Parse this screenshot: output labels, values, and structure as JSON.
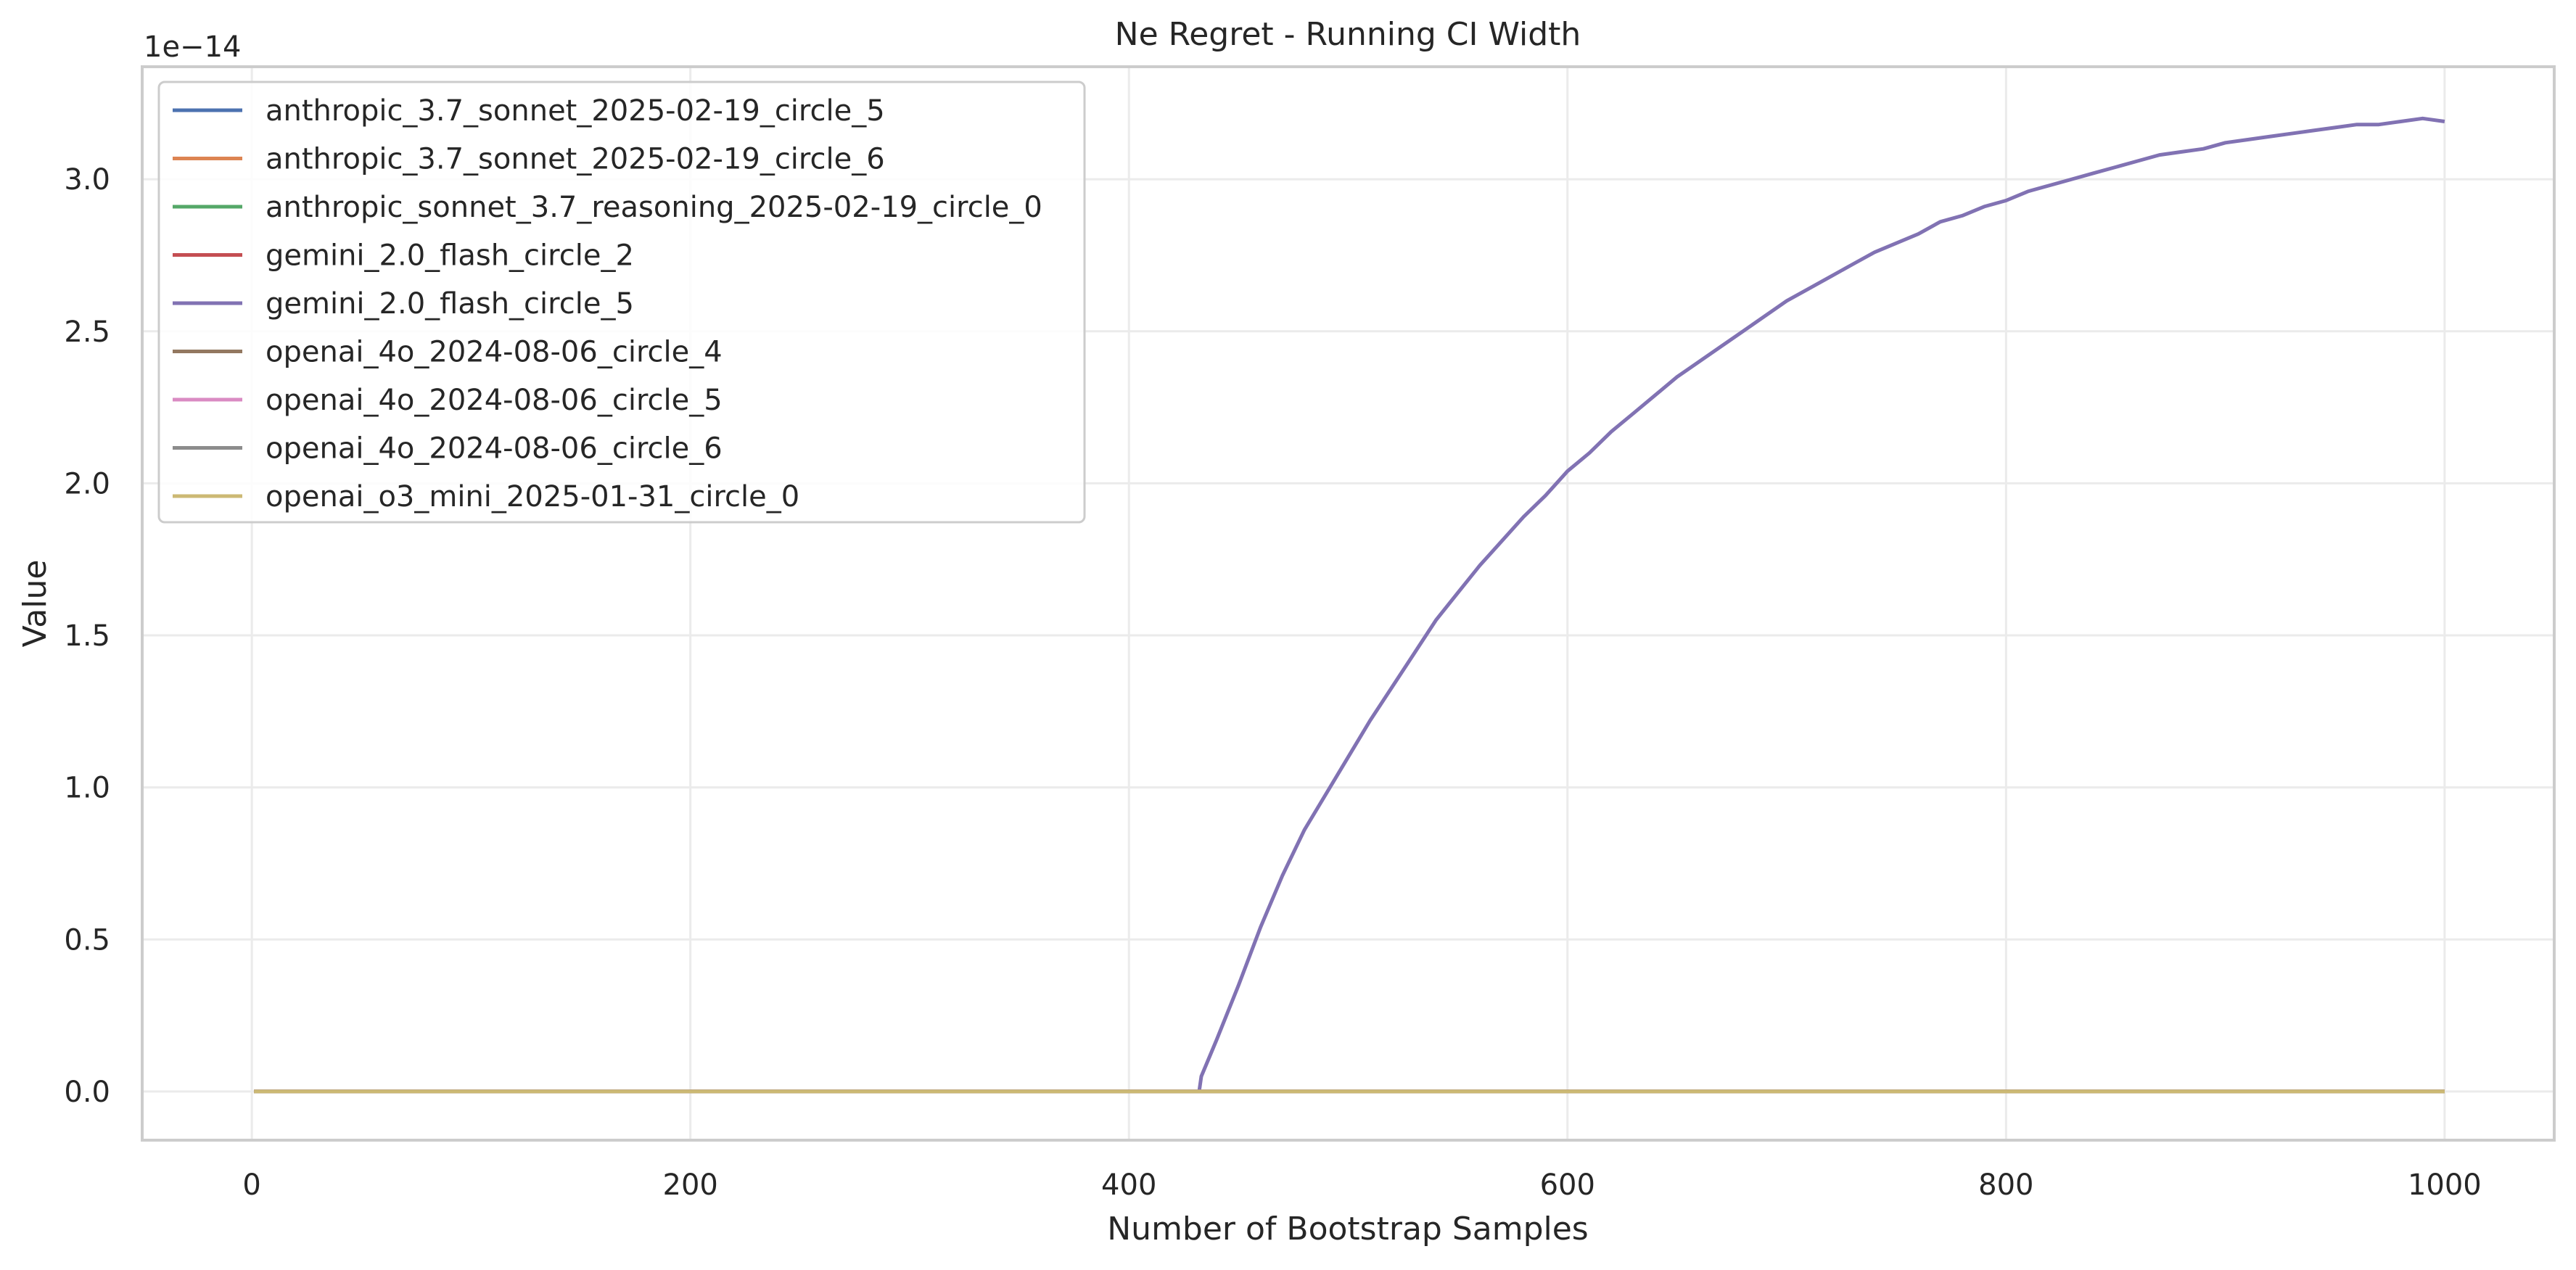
{
  "chart_data": {
    "type": "line",
    "title": "Ne Regret - Running CI Width",
    "xlabel": "Number of Bootstrap Samples",
    "ylabel": "Value",
    "y_offset_label": "1e−14",
    "xlim": [
      -50,
      1050
    ],
    "ylim": [
      -0.16,
      3.37
    ],
    "y_scale_multiplier": 1e-14,
    "xticks": [
      0,
      200,
      400,
      600,
      800,
      1000
    ],
    "xtick_labels": [
      "0",
      "200",
      "400",
      "600",
      "800",
      "1000"
    ],
    "yticks": [
      0.0,
      0.5,
      1.0,
      1.5,
      2.0,
      2.5,
      3.0
    ],
    "ytick_labels": [
      "0.0",
      "0.5",
      "1.0",
      "1.5",
      "2.0",
      "2.5",
      "3.0"
    ],
    "grid": true,
    "legend_position": "upper-left",
    "series": [
      {
        "name": "anthropic_3.7_sonnet_2025-02-19_circle_5",
        "color": "#4c72b0",
        "points": [
          [
            1,
            0
          ],
          [
            1000,
            0
          ]
        ]
      },
      {
        "name": "anthropic_3.7_sonnet_2025-02-19_circle_6",
        "color": "#dd8452",
        "points": [
          [
            1,
            0
          ],
          [
            1000,
            0
          ]
        ]
      },
      {
        "name": "anthropic_sonnet_3.7_reasoning_2025-02-19_circle_0",
        "color": "#55a868",
        "points": [
          [
            1,
            0
          ],
          [
            1000,
            0
          ]
        ]
      },
      {
        "name": "gemini_2.0_flash_circle_2",
        "color": "#c44e52",
        "points": [
          [
            1,
            0
          ],
          [
            1000,
            0
          ]
        ]
      },
      {
        "name": "gemini_2.0_flash_circle_5",
        "color": "#8172b3",
        "points": [
          [
            1,
            0
          ],
          [
            432,
            0
          ],
          [
            433,
            0.05
          ],
          [
            440,
            0.17
          ],
          [
            450,
            0.35
          ],
          [
            460,
            0.54
          ],
          [
            470,
            0.71
          ],
          [
            480,
            0.86
          ],
          [
            490,
            0.98
          ],
          [
            500,
            1.1
          ],
          [
            510,
            1.22
          ],
          [
            520,
            1.33
          ],
          [
            530,
            1.44
          ],
          [
            540,
            1.55
          ],
          [
            550,
            1.64
          ],
          [
            560,
            1.73
          ],
          [
            570,
            1.81
          ],
          [
            580,
            1.89
          ],
          [
            590,
            1.96
          ],
          [
            600,
            2.04
          ],
          [
            610,
            2.1
          ],
          [
            620,
            2.17
          ],
          [
            630,
            2.23
          ],
          [
            640,
            2.29
          ],
          [
            650,
            2.35
          ],
          [
            660,
            2.4
          ],
          [
            670,
            2.45
          ],
          [
            680,
            2.5
          ],
          [
            690,
            2.55
          ],
          [
            700,
            2.6
          ],
          [
            710,
            2.64
          ],
          [
            720,
            2.68
          ],
          [
            730,
            2.72
          ],
          [
            740,
            2.76
          ],
          [
            750,
            2.79
          ],
          [
            760,
            2.82
          ],
          [
            770,
            2.86
          ],
          [
            780,
            2.88
          ],
          [
            790,
            2.91
          ],
          [
            800,
            2.93
          ],
          [
            810,
            2.96
          ],
          [
            820,
            2.98
          ],
          [
            830,
            3.0
          ],
          [
            840,
            3.02
          ],
          [
            850,
            3.04
          ],
          [
            860,
            3.06
          ],
          [
            870,
            3.08
          ],
          [
            880,
            3.09
          ],
          [
            890,
            3.1
          ],
          [
            900,
            3.12
          ],
          [
            910,
            3.13
          ],
          [
            920,
            3.14
          ],
          [
            930,
            3.15
          ],
          [
            940,
            3.16
          ],
          [
            950,
            3.17
          ],
          [
            960,
            3.18
          ],
          [
            970,
            3.18
          ],
          [
            980,
            3.19
          ],
          [
            990,
            3.2
          ],
          [
            1000,
            3.19
          ]
        ]
      },
      {
        "name": "openai_4o_2024-08-06_circle_4",
        "color": "#937860",
        "points": [
          [
            1,
            0
          ],
          [
            1000,
            0
          ]
        ]
      },
      {
        "name": "openai_4o_2024-08-06_circle_5",
        "color": "#da8bc3",
        "points": [
          [
            1,
            0
          ],
          [
            1000,
            0
          ]
        ]
      },
      {
        "name": "openai_4o_2024-08-06_circle_6",
        "color": "#8c8c8c",
        "points": [
          [
            1,
            0
          ],
          [
            1000,
            0
          ]
        ]
      },
      {
        "name": "openai_o3_mini_2025-01-31_circle_0",
        "color": "#ccb974",
        "points": [
          [
            1,
            0
          ],
          [
            1000,
            0
          ]
        ]
      }
    ]
  }
}
